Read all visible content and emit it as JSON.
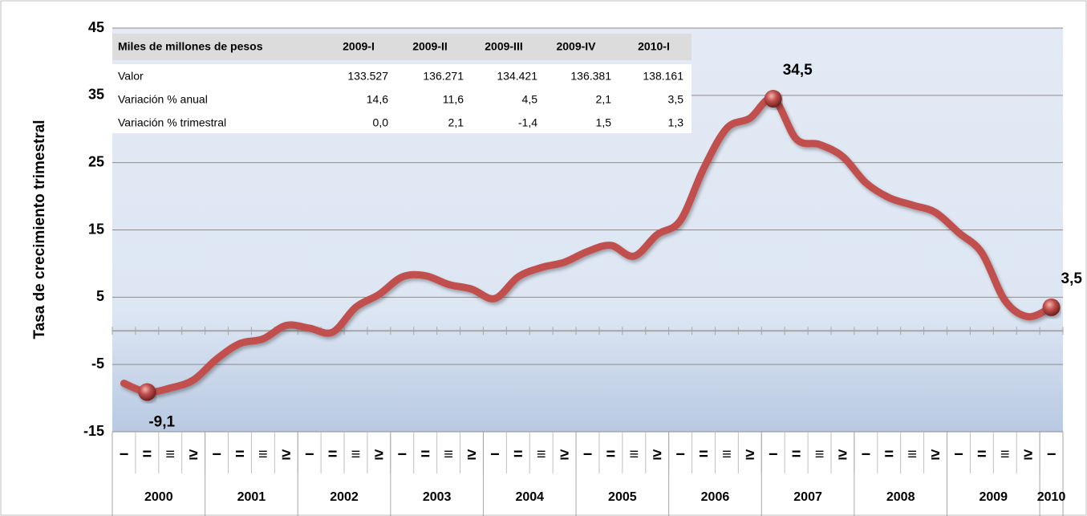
{
  "chart_data": {
    "type": "line",
    "y_label": "Tasa de crecimiento trimestral",
    "categories": [
      "−",
      "=",
      "≡",
      "≥",
      "−",
      "=",
      "≡",
      "≥",
      "−",
      "=",
      "≡",
      "≥",
      "−",
      "=",
      "≡",
      "≥",
      "−",
      "=",
      "≡",
      "≥",
      "−",
      "=",
      "≡",
      "≥",
      "−",
      "=",
      "≡",
      "≥",
      "−",
      "=",
      "≡",
      "≥",
      "−",
      "=",
      "≡",
      "≥",
      "−",
      "=",
      "≡",
      "≥",
      "−"
    ],
    "x_groups": [
      {
        "label": "2000",
        "count": 4
      },
      {
        "label": "2001",
        "count": 4
      },
      {
        "label": "2002",
        "count": 4
      },
      {
        "label": "2003",
        "count": 4
      },
      {
        "label": "2004",
        "count": 4
      },
      {
        "label": "2005",
        "count": 4
      },
      {
        "label": "2006",
        "count": 4
      },
      {
        "label": "2007",
        "count": 4
      },
      {
        "label": "2008",
        "count": 4
      },
      {
        "label": "2009",
        "count": 4
      },
      {
        "label": "2010",
        "count": 1
      }
    ],
    "values": [
      -7.8,
      -9.1,
      -8.5,
      -7.3,
      -4.2,
      -1.9,
      -1.2,
      0.8,
      0.4,
      -0.2,
      3.5,
      5.4,
      8.0,
      8.2,
      6.9,
      6.2,
      4.8,
      8.0,
      9.4,
      10.2,
      11.8,
      12.7,
      11.1,
      14.3,
      16.4,
      24.1,
      30.1,
      31.6,
      34.5,
      28.5,
      27.7,
      25.9,
      22.0,
      19.8,
      18.7,
      17.6,
      14.6,
      11.6,
      4.5,
      2.1,
      3.5
    ],
    "value_labels": [
      null,
      "-9,1",
      null,
      null,
      null,
      null,
      null,
      null,
      null,
      null,
      null,
      null,
      null,
      null,
      null,
      null,
      null,
      null,
      null,
      null,
      null,
      null,
      null,
      null,
      null,
      null,
      null,
      null,
      "34,5",
      null,
      null,
      null,
      null,
      null,
      null,
      null,
      null,
      null,
      null,
      null,
      "3,5"
    ],
    "color": "#c0504d",
    "ylim": [
      -15,
      45
    ],
    "yticks": [
      45,
      35,
      25,
      15,
      5,
      -5,
      -15
    ],
    "grid": true,
    "table": {
      "header": [
        "Miles de millones de pesos",
        "2009-I",
        "2009-II",
        "2009-III",
        "2009-IV",
        "2010-I"
      ],
      "rows": [
        [
          "Valor",
          "133.527",
          "136.271",
          "134.421",
          "136.381",
          "138.161"
        ],
        [
          "Variación % anual",
          "14,6",
          "11,6",
          "4,5",
          "2,1",
          "3,5"
        ],
        [
          "Variación % trimestral",
          "0,0",
          "2,1",
          "-1,4",
          "1,5",
          "1,3"
        ]
      ]
    }
  }
}
